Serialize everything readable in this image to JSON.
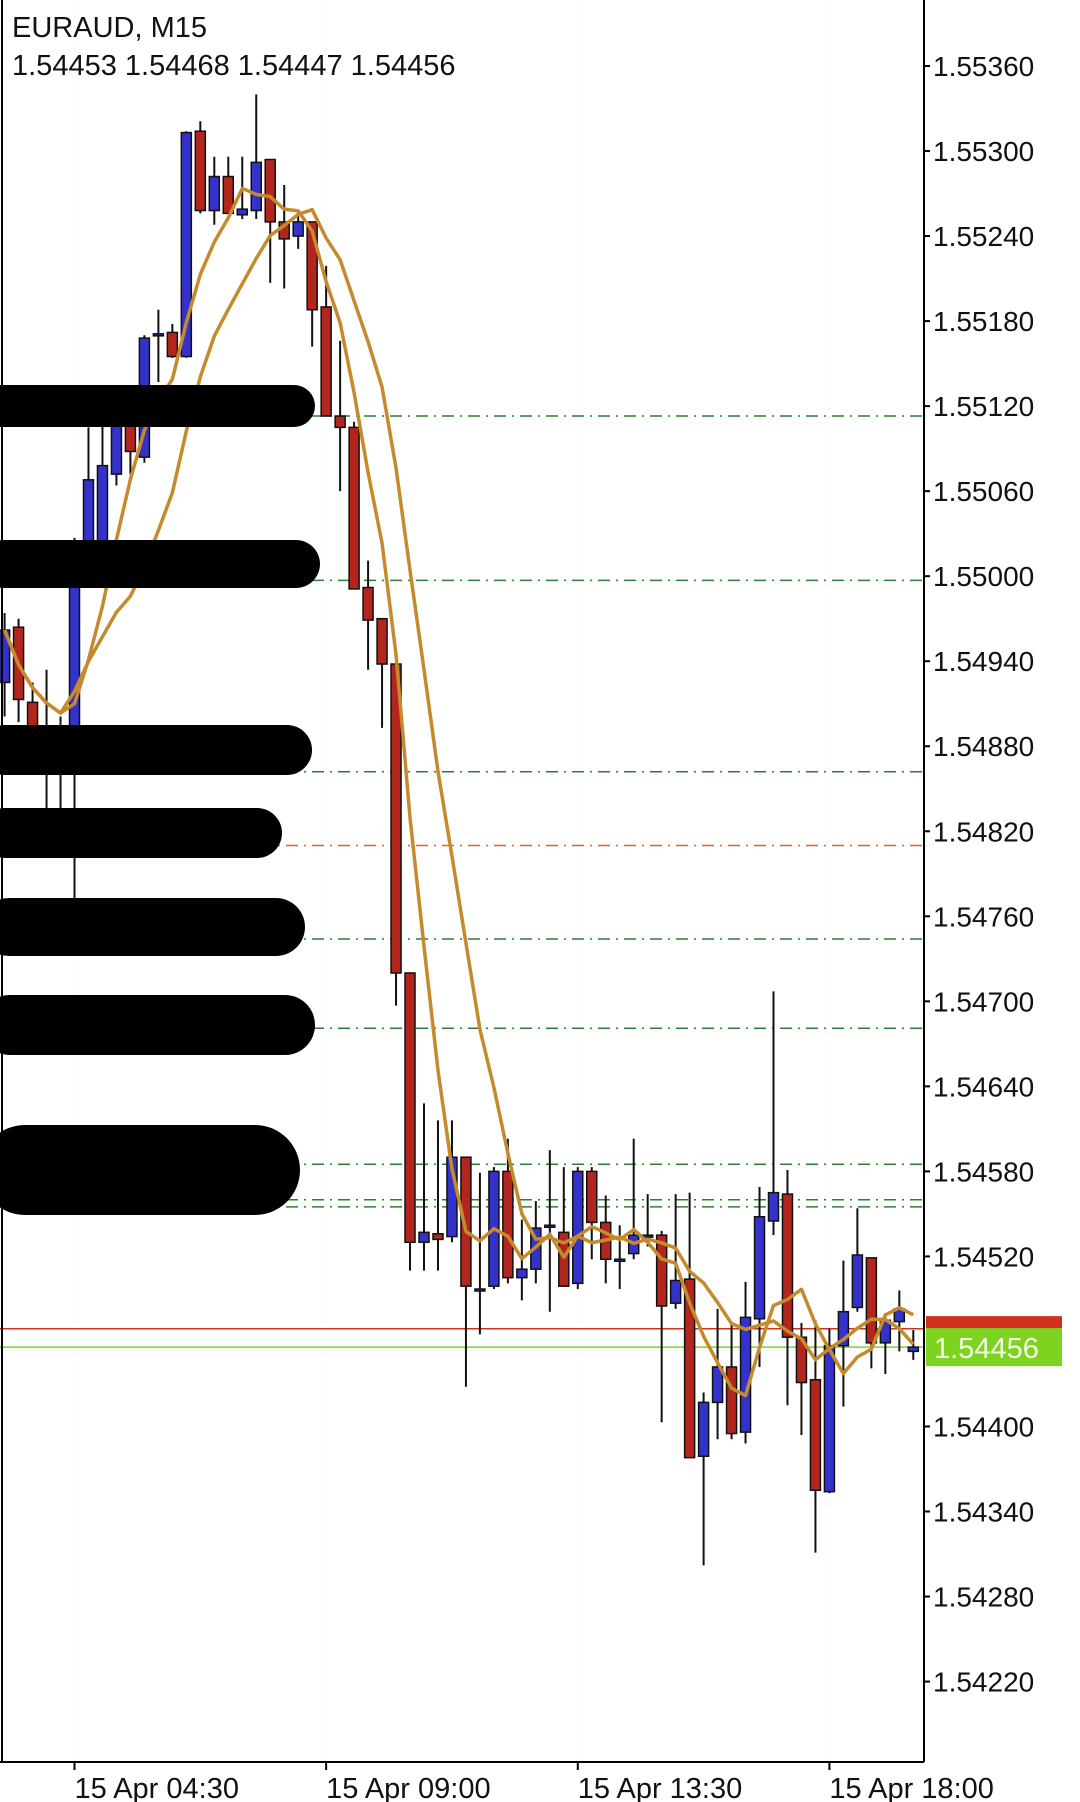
{
  "header": {
    "title": "EURAUD, M15",
    "ohlc": "1.54453 1.54468 1.54447 1.54456"
  },
  "current_price": {
    "label": "1.54456",
    "bid": 1.54456,
    "ask_line": 1.54469,
    "bid_color": "#7ed321",
    "ask_color": "#d0301e"
  },
  "colors": {
    "bull": "#3333cc",
    "bear": "#b3261e",
    "ma": "#c58a2c",
    "level_green": "#2e7d32",
    "level_orange": "#d2691e"
  },
  "chart_data": {
    "type": "candlestick",
    "symbol": "EURAUD",
    "timeframe": "M15",
    "ylim": [
      1.5416,
      1.5542
    ],
    "y_ticks": [
      "1.55360",
      "1.55300",
      "1.55240",
      "1.55180",
      "1.55120",
      "1.55060",
      "1.55000",
      "1.54940",
      "1.54880",
      "1.54820",
      "1.54760",
      "1.54700",
      "1.54640",
      "1.54580",
      "1.54520",
      "1.54456",
      "1.54400",
      "1.54340",
      "1.54280",
      "1.54220"
    ],
    "x_ticks": [
      {
        "label": "15 Apr 04:30",
        "time": "04:30"
      },
      {
        "label": "15 Apr 09:00",
        "time": "09:00"
      },
      {
        "label": "15 Apr 13:30",
        "time": "13:30"
      },
      {
        "label": "15 Apr 18:00",
        "time": "18:00"
      }
    ],
    "grid": false,
    "levels": [
      {
        "price": 1.55113,
        "color": "green"
      },
      {
        "price": 1.54997,
        "color": "green"
      },
      {
        "price": 1.54862,
        "color": "green"
      },
      {
        "price": 1.5481,
        "color": "orange"
      },
      {
        "price": 1.54744,
        "color": "green"
      },
      {
        "price": 1.54681,
        "color": "green"
      },
      {
        "price": 1.54585,
        "color": "green"
      },
      {
        "price": 1.5456,
        "color": "green"
      },
      {
        "price": 1.54555,
        "color": "green"
      }
    ],
    "candles": [
      [
        "03:15",
        1.54925,
        1.54974,
        1.54901,
        1.54962
      ],
      [
        "03:30",
        1.54964,
        1.5497,
        1.54897,
        1.54913
      ],
      [
        "03:45",
        1.54911,
        1.54925,
        1.54868,
        1.54889
      ],
      [
        "04:00",
        1.54885,
        1.54934,
        1.54836,
        1.54878
      ],
      [
        "04:15",
        1.54877,
        1.54901,
        1.54836,
        1.54875
      ],
      [
        "04:30",
        1.54885,
        1.55027,
        1.54766,
        1.54995
      ],
      [
        "04:45",
        1.55023,
        1.55105,
        1.55015,
        1.55068
      ],
      [
        "05:00",
        1.55023,
        1.55117,
        1.55015,
        1.55078
      ],
      [
        "05:15",
        1.55072,
        1.55121,
        1.55064,
        1.55113
      ],
      [
        "05:30",
        1.55113,
        1.55125,
        1.55072,
        1.55088
      ],
      [
        "05:45",
        1.55084,
        1.5517,
        1.5508,
        1.55168
      ],
      [
        "06:00",
        1.5517,
        1.55188,
        1.55137,
        1.55171
      ],
      [
        "06:15",
        1.55172,
        1.55178,
        1.55154,
        1.55155
      ],
      [
        "06:30",
        1.55155,
        1.55314,
        1.55154,
        1.55313
      ],
      [
        "06:45",
        1.55314,
        1.55321,
        1.55256,
        1.55258
      ],
      [
        "07:00",
        1.55258,
        1.55296,
        1.55248,
        1.55282
      ],
      [
        "07:15",
        1.55282,
        1.55296,
        1.55256,
        1.55256
      ],
      [
        "07:30",
        1.55255,
        1.55296,
        1.55252,
        1.55259
      ],
      [
        "07:45",
        1.55258,
        1.5534,
        1.55252,
        1.55292
      ],
      [
        "08:00",
        1.55294,
        1.55294,
        1.55207,
        1.5525
      ],
      [
        "08:15",
        1.5525,
        1.55276,
        1.55203,
        1.55238
      ],
      [
        "08:30",
        1.5524,
        1.55258,
        1.55231,
        1.5525
      ],
      [
        "08:45",
        1.5525,
        1.5525,
        1.55162,
        1.55188
      ],
      [
        "09:00",
        1.5519,
        1.55219,
        1.55113,
        1.55113
      ],
      [
        "09:15",
        1.55113,
        1.55166,
        1.5506,
        1.55105
      ],
      [
        "09:30",
        1.55105,
        1.55109,
        1.54991,
        1.54991
      ],
      [
        "09:45",
        1.54992,
        1.55011,
        1.54934,
        1.54969
      ],
      [
        "10:00",
        1.5497,
        1.5497,
        1.54893,
        1.54938
      ],
      [
        "10:15",
        1.54938,
        1.54938,
        1.54697,
        1.5472
      ],
      [
        "10:30",
        1.5472,
        1.5472,
        1.5451,
        1.5453
      ],
      [
        "10:45",
        1.5453,
        1.54628,
        1.5451,
        1.54537
      ],
      [
        "11:00",
        1.54536,
        1.54616,
        1.5451,
        1.54532
      ],
      [
        "11:15",
        1.54534,
        1.54616,
        1.5453,
        1.5459
      ],
      [
        "11:30",
        1.5459,
        1.5459,
        1.54428,
        1.54499
      ],
      [
        "11:45",
        1.54497,
        1.54579,
        1.54465,
        1.54497
      ],
      [
        "12:00",
        1.54499,
        1.54583,
        1.54497,
        1.5458
      ],
      [
        "12:15",
        1.5458,
        1.54603,
        1.54501,
        1.54505
      ],
      [
        "12:30",
        1.54505,
        1.54546,
        1.54489,
        1.54511
      ],
      [
        "12:45",
        1.54511,
        1.54559,
        1.54501,
        1.5454
      ],
      [
        "13:00",
        1.54542,
        1.54595,
        1.54481,
        1.54542
      ],
      [
        "13:15",
        1.54537,
        1.54583,
        1.54499,
        1.54499
      ],
      [
        "13:30",
        1.54501,
        1.54583,
        1.54497,
        1.5458
      ],
      [
        "13:45",
        1.5458,
        1.54583,
        1.54518,
        1.54544
      ],
      [
        "14:00",
        1.54544,
        1.54563,
        1.54501,
        1.54518
      ],
      [
        "14:15",
        1.54518,
        1.54542,
        1.54497,
        1.54518
      ],
      [
        "14:30",
        1.54522,
        1.54603,
        1.54518,
        1.54535
      ],
      [
        "14:45",
        1.54534,
        1.54564,
        1.54527,
        1.54535
      ],
      [
        "15:00",
        1.54535,
        1.54538,
        1.54403,
        1.54485
      ],
      [
        "15:15",
        1.54487,
        1.54564,
        1.54483,
        1.54503
      ],
      [
        "15:30",
        1.54504,
        1.54565,
        1.54378,
        1.54378
      ],
      [
        "15:45",
        1.54379,
        1.54424,
        1.54302,
        1.54417
      ],
      [
        "16:00",
        1.54417,
        1.54483,
        1.54391,
        1.54442
      ],
      [
        "16:15",
        1.54442,
        1.54472,
        1.54391,
        1.54395
      ],
      [
        "16:30",
        1.54396,
        1.54502,
        1.54388,
        1.54477
      ],
      [
        "16:45",
        1.54476,
        1.54569,
        1.54442,
        1.54548
      ],
      [
        "17:00",
        1.54545,
        1.54707,
        1.54535,
        1.54565
      ],
      [
        "17:15",
        1.54564,
        1.54581,
        1.54415,
        1.54463
      ],
      [
        "17:30",
        1.54463,
        1.54473,
        1.54394,
        1.54431
      ],
      [
        "17:45",
        1.54433,
        1.54475,
        1.54311,
        1.54355
      ],
      [
        "18:00",
        1.54354,
        1.54469,
        1.54353,
        1.54457
      ],
      [
        "18:15",
        1.54457,
        1.54517,
        1.54414,
        1.54481
      ],
      [
        "18:30",
        1.54484,
        1.54554,
        1.54481,
        1.54521
      ],
      [
        "18:45",
        1.54519,
        1.54519,
        1.54441,
        1.54459
      ],
      [
        "19:00",
        1.54459,
        1.5448,
        1.54437,
        1.54475
      ],
      [
        "19:15",
        1.54474,
        1.54496,
        1.54453,
        1.54483
      ],
      [
        "19:30",
        1.54453,
        1.54468,
        1.54447,
        1.54456
      ]
    ]
  }
}
